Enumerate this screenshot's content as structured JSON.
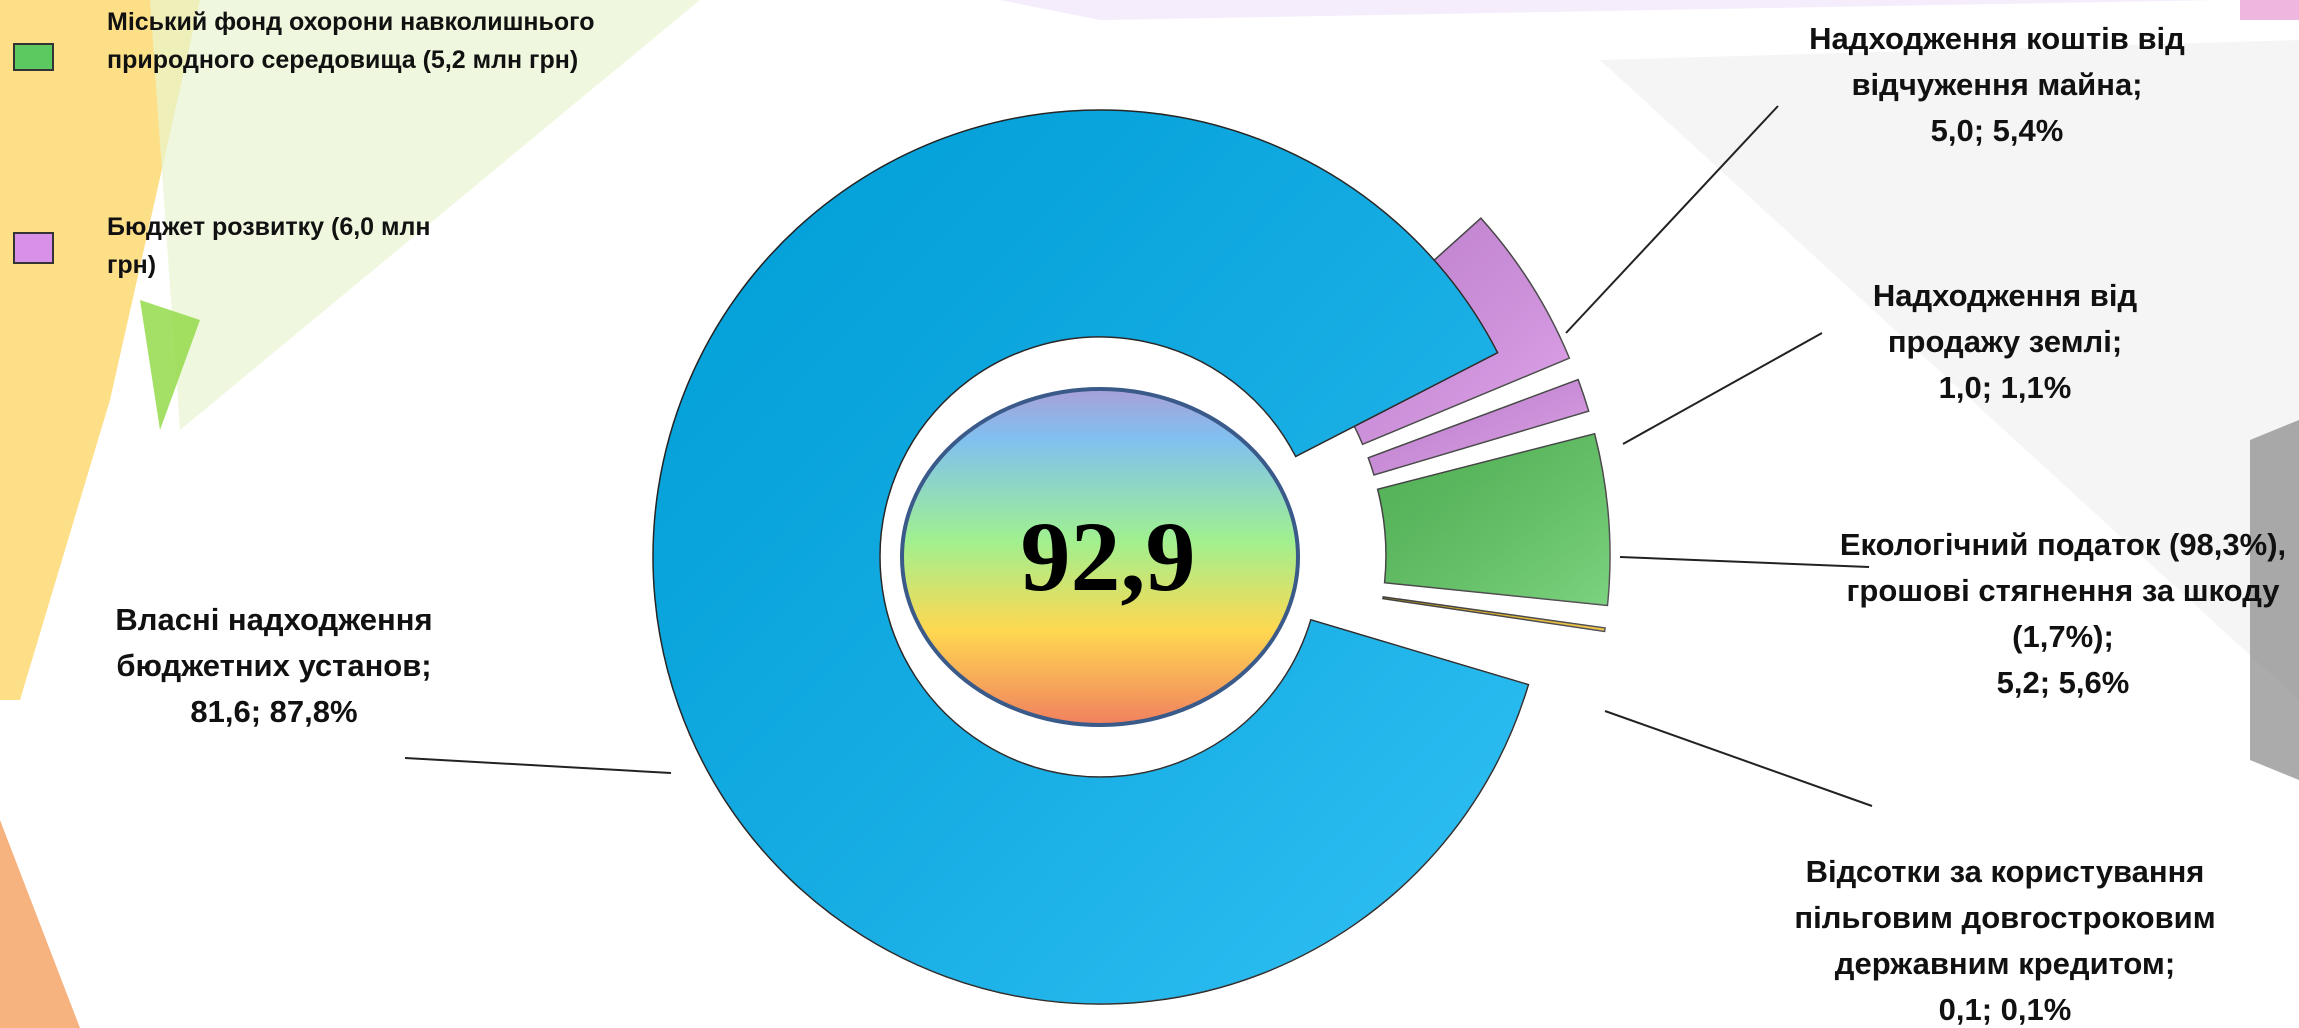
{
  "chart_data": {
    "type": "donut",
    "categories": [
      "Власні надходження бюджетних установ;",
      "Надходження коштів від відчуження майна;",
      "Надходження від продажу землі;",
      "Екологічний податок (98,3%), грошові стягнення за шкоду (1,7%);",
      "Відсотки за користування пільговим довгостроковим державним кредитом;"
    ],
    "values": [
      81.6,
      5.0,
      1.0,
      5.2,
      0.1
    ],
    "value_labels": [
      "81,6; 87,8%",
      "5,0; 5,4%",
      "1,0; 1,1%",
      "5,2; 5,6%",
      "0,1; 0,1%"
    ],
    "colors": [
      "#00b4f5",
      "#d890e8",
      "#d890e8",
      "#5cc860",
      "#f8c020"
    ],
    "center_label": "92,9",
    "legend": [
      {
        "name": "Міський фонд охорони навколишнього природного середовища (5,2 млн грн)",
        "color": "#5cc860"
      },
      {
        "name": "Бюджет розвитку (6,0 млн грн)",
        "color": "#d890e8"
      }
    ]
  }
}
